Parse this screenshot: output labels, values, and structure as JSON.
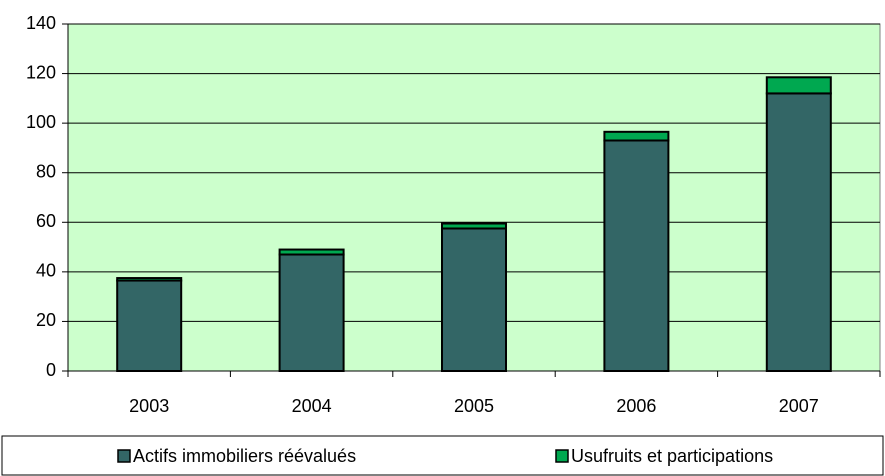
{
  "chart_data": {
    "type": "stacked_bar",
    "categories": [
      "2003",
      "2004",
      "2005",
      "2006",
      "2007"
    ],
    "series": [
      {
        "name": "Actifs immobiliers réévalués",
        "color": "#336666",
        "values": [
          36.5,
          47,
          57.5,
          93,
          112
        ]
      },
      {
        "name": "Usufruits et participations",
        "color": "#00a850",
        "values": [
          1,
          2,
          2,
          3.5,
          6.5
        ]
      }
    ],
    "ylim": [
      0,
      140
    ],
    "yticks": [
      0,
      20,
      40,
      60,
      80,
      100,
      120,
      140
    ],
    "grid": true,
    "legend": "bottom",
    "plot_background": "#ccffcc"
  }
}
